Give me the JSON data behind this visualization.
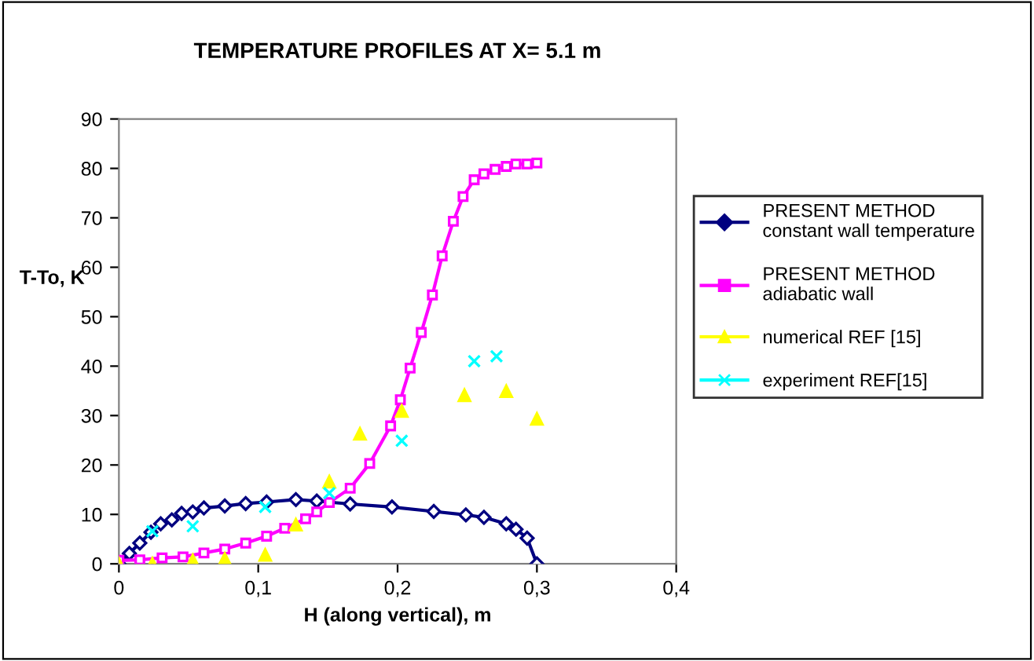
{
  "chart_data": {
    "type": "line",
    "title": "TEMPERATURE PROFILES AT X= 5.1 m",
    "xlabel": "H (along vertical), m",
    "ylabel": "T-To, K",
    "xlim": [
      0,
      0.4
    ],
    "xticks": [
      0,
      {
        "value": 0.1,
        "label": "0,1"
      },
      {
        "value": 0.2,
        "label": "0,2"
      },
      {
        "value": 0.3,
        "label": "0,3"
      },
      {
        "value": 0.4,
        "label": "0,4"
      }
    ],
    "ylim": [
      0,
      90
    ],
    "yticks": [
      0,
      10,
      20,
      30,
      40,
      50,
      60,
      70,
      80,
      90
    ],
    "grid": false,
    "legend": "right",
    "series": [
      {
        "name": "PRESENT METHOD\nconstant wall temperature",
        "marker": "diamond",
        "color": "#000080",
        "x": [
          0,
          0.0075,
          0.015,
          0.023,
          0.03,
          0.038,
          0.045,
          0.053,
          0.061,
          0.076,
          0.091,
          0.106,
          0.127,
          0.142,
          0.166,
          0.196,
          0.226,
          0.249,
          0.262,
          0.278,
          0.285,
          0.293,
          0.3
        ],
        "values": [
          0,
          2.1,
          4.2,
          6.4,
          8.1,
          8.9,
          10.2,
          10.5,
          11.3,
          11.7,
          12.2,
          12.5,
          13.0,
          12.7,
          12.1,
          11.5,
          10.6,
          9.9,
          9.4,
          8.1,
          7.0,
          5.2,
          0
        ]
      },
      {
        "name": "PRESENT METHOD\nadiabatic wall",
        "marker": "square",
        "color": "#ff00ff",
        "x": [
          0,
          0.015,
          0.031,
          0.046,
          0.061,
          0.076,
          0.091,
          0.106,
          0.119,
          0.134,
          0.142,
          0.151,
          0.166,
          0.18,
          0.195,
          0.202,
          0.209,
          0.217,
          0.225,
          0.232,
          0.24,
          0.247,
          0.255,
          0.262,
          0.27,
          0.278,
          0.285,
          0.293,
          0.3
        ],
        "values": [
          0.7,
          0.8,
          1.2,
          1.4,
          2.2,
          3.0,
          4.2,
          5.6,
          7.2,
          9.1,
          10.5,
          12.4,
          15.3,
          20.3,
          27.9,
          33.2,
          39.6,
          46.8,
          54.4,
          62.3,
          69.3,
          74.3,
          77.7,
          78.9,
          79.8,
          80.4,
          80.9,
          80.9,
          81.1
        ]
      },
      {
        "name": "numerical REF [15]",
        "type": "scatter",
        "marker": "triangle",
        "color": "#ffff00",
        "x": [
          0,
          0.024,
          0.053,
          0.076,
          0.105,
          0.127,
          0.151,
          0.173,
          0.203,
          0.248,
          0.278,
          0.3
        ],
        "values": [
          0,
          0,
          0.7,
          1.0,
          1.8,
          7.9,
          16.6,
          26.3,
          30.9,
          34.1,
          34.9,
          29.3
        ]
      },
      {
        "name": "experiment REF[15]",
        "type": "scatter",
        "marker": "cross",
        "color": "#00ffff",
        "x": [
          0.024,
          0.053,
          0.105,
          0.151,
          0.203,
          0.255,
          0.271
        ],
        "values": [
          6.6,
          7.6,
          11.5,
          14.3,
          24.9,
          41.0,
          42.0
        ]
      }
    ]
  }
}
